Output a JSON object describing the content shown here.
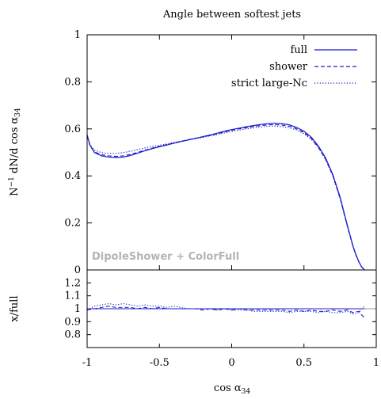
{
  "chart_data": [
    {
      "type": "line",
      "title": "Angle between softest jets",
      "xlabel": "cos α34",
      "ylabel": "N⁻¹ dN/d cos α34",
      "xlim": [
        -1,
        1
      ],
      "ylim": [
        0,
        1
      ],
      "yticks": [
        "0",
        "0.2",
        "0.4",
        "0.6",
        "0.8",
        "1"
      ],
      "legend_position": "top-right",
      "annotation": "DipoleShower + ColorFull",
      "colors": {
        "series": "#1c1cc8",
        "annotation": "#b4b4b4"
      },
      "x": [
        -1.0,
        -0.98,
        -0.95,
        -0.9,
        -0.85,
        -0.8,
        -0.75,
        -0.7,
        -0.65,
        -0.6,
        -0.55,
        -0.5,
        -0.45,
        -0.4,
        -0.35,
        -0.3,
        -0.25,
        -0.2,
        -0.15,
        -0.1,
        -0.05,
        0.0,
        0.05,
        0.1,
        0.15,
        0.2,
        0.25,
        0.3,
        0.35,
        0.4,
        0.45,
        0.5,
        0.55,
        0.6,
        0.65,
        0.7,
        0.75,
        0.8,
        0.84,
        0.86,
        0.88,
        0.9,
        0.92
      ],
      "series": [
        {
          "name": "full",
          "style": "solid",
          "values": [
            0.575,
            0.53,
            0.5,
            0.485,
            0.48,
            0.478,
            0.48,
            0.487,
            0.497,
            0.507,
            0.516,
            0.524,
            0.531,
            0.539,
            0.546,
            0.553,
            0.56,
            0.567,
            0.574,
            0.582,
            0.59,
            0.597,
            0.603,
            0.609,
            0.614,
            0.619,
            0.622,
            0.624,
            0.622,
            0.617,
            0.606,
            0.59,
            0.565,
            0.527,
            0.476,
            0.405,
            0.31,
            0.19,
            0.1,
            0.065,
            0.035,
            0.012,
            0.0
          ]
        },
        {
          "name": "shower",
          "style": "dashed",
          "values": [
            0.57,
            0.528,
            0.502,
            0.49,
            0.485,
            0.483,
            0.485,
            0.492,
            0.5,
            0.509,
            0.518,
            0.526,
            0.533,
            0.54,
            0.547,
            0.554,
            0.56,
            0.566,
            0.572,
            0.579,
            0.587,
            0.594,
            0.6,
            0.605,
            0.61,
            0.614,
            0.617,
            0.618,
            0.616,
            0.611,
            0.6,
            0.585,
            0.56,
            0.522,
            0.47,
            0.4,
            0.305,
            0.187,
            0.098,
            0.063,
            0.034,
            0.011,
            0.0
          ]
        },
        {
          "name": "strict large-Nc",
          "style": "dotted",
          "values": [
            0.57,
            0.532,
            0.51,
            0.499,
            0.496,
            0.496,
            0.499,
            0.505,
            0.512,
            0.519,
            0.525,
            0.53,
            0.536,
            0.542,
            0.548,
            0.553,
            0.558,
            0.564,
            0.57,
            0.576,
            0.583,
            0.589,
            0.595,
            0.6,
            0.604,
            0.608,
            0.611,
            0.612,
            0.609,
            0.604,
            0.595,
            0.58,
            0.556,
            0.52,
            0.47,
            0.4,
            0.305,
            0.186,
            0.097,
            0.062,
            0.034,
            0.011,
            0.0
          ]
        }
      ]
    },
    {
      "type": "line",
      "xlabel": "cos α34",
      "ylabel": "x/full",
      "xlim": [
        -1,
        1
      ],
      "ylim": [
        0.7,
        1.3
      ],
      "yticks": [
        "0.8",
        "0.9",
        "1",
        "1.1",
        "1.2"
      ],
      "xticks": [
        "-1",
        "-0.5",
        "0",
        "0.5",
        "1"
      ],
      "reference_line": 1,
      "colors": {
        "series": "#1c1cc8",
        "reference": "#999999"
      },
      "x": [
        -1.0,
        -0.95,
        -0.9,
        -0.85,
        -0.8,
        -0.75,
        -0.7,
        -0.65,
        -0.6,
        -0.55,
        -0.5,
        -0.45,
        -0.4,
        -0.35,
        -0.3,
        -0.25,
        -0.2,
        -0.15,
        -0.1,
        -0.05,
        0.0,
        0.05,
        0.1,
        0.15,
        0.2,
        0.25,
        0.3,
        0.35,
        0.4,
        0.45,
        0.5,
        0.55,
        0.6,
        0.65,
        0.7,
        0.75,
        0.8,
        0.84,
        0.88,
        0.9,
        0.92
      ],
      "series": [
        {
          "name": "full",
          "style": "solid",
          "values": [
            1.0,
            1.0,
            1.0,
            1.0,
            1.0,
            1.0,
            1.0,
            1.0,
            1.0,
            1.0,
            1.0,
            1.0,
            1.0,
            1.0,
            1.0,
            1.0,
            1.0,
            1.0,
            1.0,
            1.0,
            1.0,
            1.0,
            1.0,
            1.0,
            1.0,
            1.0,
            1.0,
            1.0,
            1.0,
            1.0,
            1.0,
            1.0,
            1.0,
            1.0,
            1.0,
            1.0,
            1.0,
            1.0,
            1.0,
            1.0,
            1.0
          ]
        },
        {
          "name": "shower",
          "style": "dashed",
          "values": [
            0.99,
            1.0,
            1.01,
            1.02,
            1.01,
            1.01,
            1.01,
            1.0,
            1.01,
            1.0,
            1.01,
            1.0,
            1.0,
            1.0,
            1.0,
            1.0,
            0.99,
            1.0,
            0.99,
            1.0,
            0.99,
            1.0,
            0.99,
            0.99,
            0.99,
            0.99,
            0.99,
            0.99,
            0.98,
            0.99,
            0.98,
            0.99,
            0.98,
            0.98,
            0.99,
            0.98,
            0.99,
            0.97,
            0.98,
            0.95,
            0.93
          ]
        },
        {
          "name": "strict large-Nc",
          "style": "dotted",
          "values": [
            0.99,
            1.02,
            1.03,
            1.04,
            1.03,
            1.04,
            1.03,
            1.02,
            1.03,
            1.02,
            1.02,
            1.01,
            1.02,
            1.01,
            1.0,
            1.0,
            1.0,
            1.0,
            0.99,
            1.0,
            0.99,
            0.99,
            0.99,
            0.98,
            0.98,
            0.98,
            0.98,
            0.98,
            0.97,
            0.98,
            0.98,
            0.98,
            0.97,
            0.98,
            0.97,
            0.97,
            0.98,
            0.96,
            0.97,
            1.0,
            1.02
          ]
        }
      ]
    }
  ]
}
